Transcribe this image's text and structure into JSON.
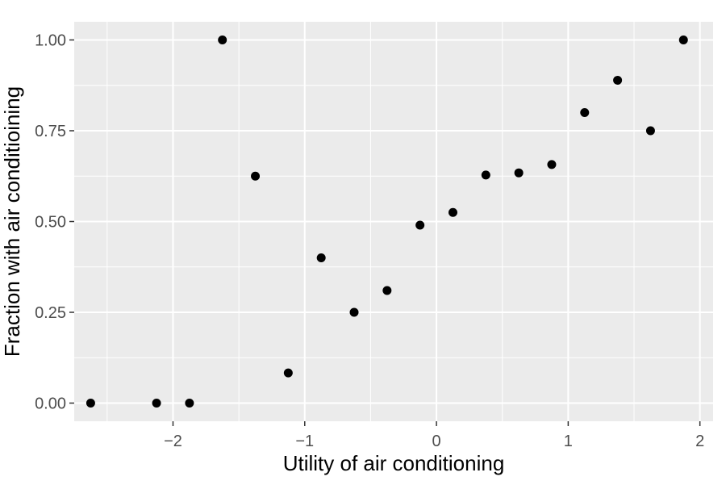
{
  "chart_data": {
    "type": "scatter",
    "title": "",
    "xlabel": "Utility of air conditioning",
    "ylabel": "Fraction with air conditioining",
    "xlim": [
      -2.75,
      2.1
    ],
    "ylim": [
      -0.05,
      1.05
    ],
    "x_ticks": [
      -2,
      -1,
      0,
      1,
      2
    ],
    "x_tick_labels": [
      "−2",
      "−1",
      "0",
      "1",
      "2"
    ],
    "y_ticks": [
      0,
      0.25,
      0.5,
      0.75,
      1
    ],
    "y_tick_labels": [
      "0.00",
      "0.25",
      "0.50",
      "0.75",
      "1.00"
    ],
    "grid": true,
    "legend": "none",
    "colors": {
      "panel_background": "#ebebeb",
      "gridline": "#ffffff",
      "point": "#000000",
      "tick_text": "#4d4d4d",
      "tick_mark": "#333333",
      "axis_title": "#000000"
    },
    "points": [
      {
        "x": -2.625,
        "y": 0.0
      },
      {
        "x": -2.125,
        "y": 0.0
      },
      {
        "x": -1.875,
        "y": 0.0
      },
      {
        "x": -1.625,
        "y": 1.0
      },
      {
        "x": -1.375,
        "y": 0.625
      },
      {
        "x": -1.125,
        "y": 0.083
      },
      {
        "x": -0.875,
        "y": 0.4
      },
      {
        "x": -0.625,
        "y": 0.25
      },
      {
        "x": -0.375,
        "y": 0.31
      },
      {
        "x": -0.125,
        "y": 0.49
      },
      {
        "x": 0.125,
        "y": 0.525
      },
      {
        "x": 0.375,
        "y": 0.628
      },
      {
        "x": 0.625,
        "y": 0.634
      },
      {
        "x": 0.875,
        "y": 0.657
      },
      {
        "x": 1.125,
        "y": 0.8
      },
      {
        "x": 1.375,
        "y": 0.889
      },
      {
        "x": 1.625,
        "y": 0.75
      },
      {
        "x": 1.875,
        "y": 1.0
      }
    ]
  }
}
